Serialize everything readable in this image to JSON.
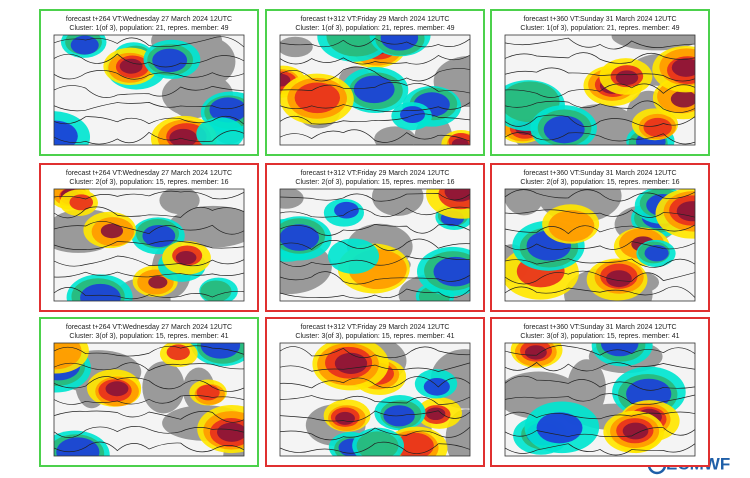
{
  "panels": [
    {
      "title": "forecast t+264 VT:Wednesday 27 March 2024 12UTC",
      "subtitle": "Cluster: 1(of 3), population: 21, repres. member: 49",
      "frame_color": "#4cd14c"
    },
    {
      "title": "forecast t+312 VT:Friday 29 March 2024 12UTC",
      "subtitle": "Cluster: 1(of 3), population: 21, repres. member: 49",
      "frame_color": "#4cd14c"
    },
    {
      "title": "forecast t+360 VT:Sunday 31 March 2024 12UTC",
      "subtitle": "Cluster: 1(of 3), population: 21, repres. member: 49",
      "frame_color": "#4cd14c"
    },
    {
      "title": "forecast t+264 VT:Wednesday 27 March 2024 12UTC",
      "subtitle": "Cluster: 2(of 3), population: 15, repres. member: 16",
      "frame_color": "#e03030"
    },
    {
      "title": "forecast t+312 VT:Friday 29 March 2024 12UTC",
      "subtitle": "Cluster: 2(of 3), population: 15, repres. member: 16",
      "frame_color": "#e03030"
    },
    {
      "title": "forecast t+360 VT:Sunday 31 March 2024 12UTC",
      "subtitle": "Cluster: 2(of 3), population: 15, repres. member: 16",
      "frame_color": "#e03030"
    },
    {
      "title": "forecast t+264 VT:Wednesday 27 March 2024 12UTC",
      "subtitle": "Cluster: 3(of 3), population: 15, repres. member: 41",
      "frame_color": "#4cd14c"
    },
    {
      "title": "forecast t+312 VT:Friday 29 March 2024 12UTC",
      "subtitle": "Cluster: 3(of 3), population: 15, repres. member: 41",
      "frame_color": "#e03030"
    },
    {
      "title": "forecast t+360 VT:Sunday 31 March 2024 12UTC",
      "subtitle": "Cluster: 3(of 3), population: 15, repres. member: 41",
      "frame_color": "#e03030"
    }
  ],
  "logo": {
    "text": "ECMWF"
  }
}
